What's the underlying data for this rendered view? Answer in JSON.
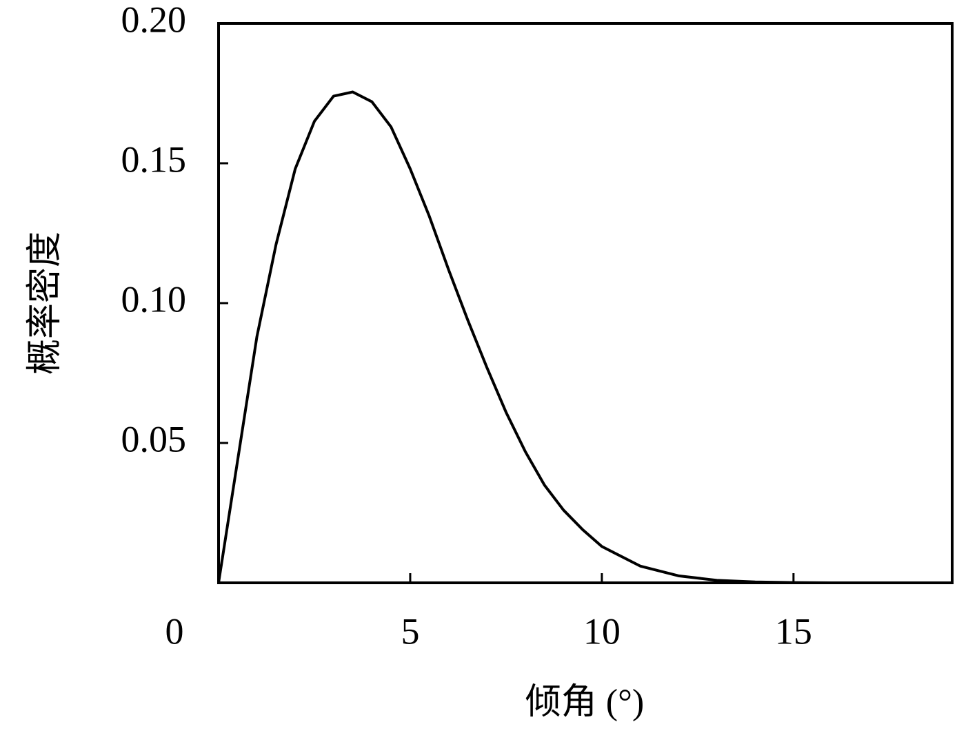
{
  "chart_data": {
    "type": "line",
    "x_label": "倾角 (°)",
    "y_label": "概率密度",
    "x": [
      0,
      0.5,
      1,
      1.5,
      2,
      2.5,
      3,
      3.5,
      4,
      4.5,
      5,
      5.5,
      6,
      6.5,
      7,
      7.5,
      8,
      8.5,
      9,
      9.5,
      10,
      11,
      12,
      13,
      14,
      15,
      16
    ],
    "series": [
      {
        "color": "#000000",
        "values": [
          0,
          0.044,
          0.088,
          0.121,
          0.148,
          0.165,
          0.174,
          0.1755,
          0.172,
          0.163,
          0.148,
          0.131,
          0.112,
          0.094,
          0.077,
          0.061,
          0.047,
          0.035,
          0.026,
          0.019,
          0.013,
          0.006,
          0.0025,
          0.0009,
          0.0003,
          0.0001,
          0
        ]
      }
    ],
    "xlim": [
      0,
      19.14
    ],
    "ylim": [
      0,
      0.2
    ],
    "xticks": [
      0,
      5,
      10,
      15
    ],
    "yticks": [
      0.05,
      {
        "value": 0.1,
        "label": "0.10"
      },
      0.15,
      {
        "value": 0.2,
        "label": "0.20"
      }
    ],
    "grid": false
  }
}
